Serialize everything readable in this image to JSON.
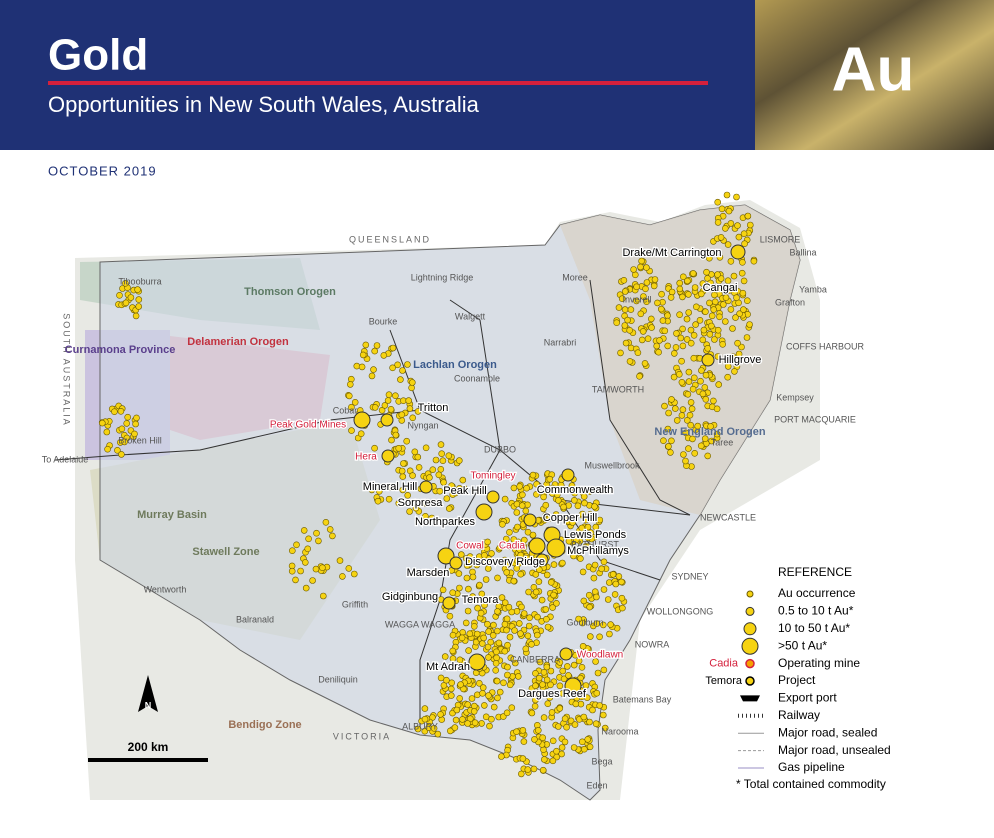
{
  "header": {
    "title": "Gold",
    "subtitle": "Opportunities in New South Wales, Australia",
    "symbol": "Au",
    "date": "OCTOBER 2019"
  },
  "map": {
    "states": [
      "QUEENSLAND",
      "SOUTH AUSTRALIA",
      "VICTORIA"
    ],
    "regions": [
      "Thomson Orogen",
      "Delamerian Orogen",
      "Curnamona Province",
      "Lachlan Orogen",
      "Murray Basin",
      "Stawell Zone",
      "Bendigo Zone",
      "New England Orogen"
    ],
    "towns": [
      "Tibooburra",
      "Bourke",
      "Lightning Ridge",
      "Moree",
      "Walgett",
      "Narrabri",
      "Inverell",
      "TAMWORTH",
      "Coonamble",
      "Cobar",
      "Nyngan",
      "Broken Hill",
      "DUBBO",
      "Muswellbrook",
      "Ballina",
      "LISMORE",
      "Yamba",
      "Grafton",
      "COFFS HARBOUR",
      "Kempsey",
      "PORT MACQUARIE",
      "Taree",
      "NEWCASTLE",
      "SYDNEY",
      "WOLLONGONG",
      "NOWRA",
      "Batemans Bay",
      "Narooma",
      "Bega",
      "Eden",
      "Goulburn",
      "CANBERRA",
      "WAGGA WAGGA",
      "Griffith",
      "Balranald",
      "Wentworth",
      "Deniliquin",
      "ALBURY",
      "BATHURST",
      "To Adelaide"
    ],
    "projects": [
      "Drake/Mt Carrington",
      "Cangai",
      "Hillgrove",
      "Tritton",
      "Mineral Hill",
      "Peak Hill",
      "Sorpresa",
      "Commonwealth",
      "Copper Hill",
      "Northparkes",
      "Lewis Ponds",
      "McPhillamys",
      "Discovery Ridge",
      "Marsden",
      "Gidginbung",
      "Temora",
      "Mt Adrah",
      "Dargues Reef"
    ],
    "mines": [
      "Peak Gold Mines",
      "Hera",
      "Tomingley",
      "Cowal",
      "Cadia",
      "Woodlawn"
    ],
    "north": "N",
    "scale": "200 km"
  },
  "legend": {
    "title": "REFERENCE",
    "items": [
      "Au occurrence",
      "0.5 to 10 t Au*",
      "10 to 50 t Au*",
      ">50 t Au*",
      "Operating mine",
      "Project",
      "Export port",
      "Railway",
      "Major road, sealed",
      "Major road, unsealed",
      "Gas pipeline"
    ],
    "mine_example": "Cadia",
    "project_example": "Temora",
    "note": "* Total contained commodity"
  }
}
